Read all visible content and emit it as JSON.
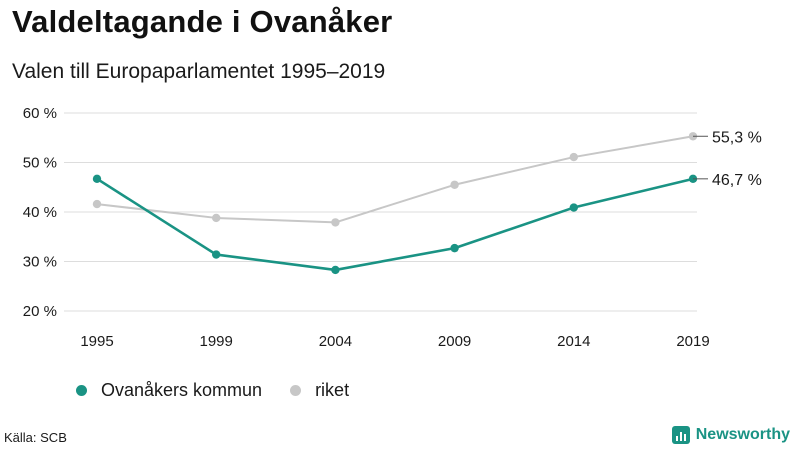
{
  "header": {
    "title": "Valdeltagande i Ovanåker",
    "subtitle": "Valen till Europaparlamentet 1995–2019"
  },
  "colors": {
    "primary": "#1a9384",
    "secondary": "#c7c7c7",
    "grid": "#dddddd",
    "brand": "#1a9384"
  },
  "chart_data": {
    "type": "line",
    "categories": [
      "1995",
      "1999",
      "2004",
      "2009",
      "2014",
      "2019"
    ],
    "ylim": [
      20,
      60
    ],
    "yticks": [
      20,
      30,
      40,
      50,
      60
    ],
    "ytick_labels": [
      "20 %",
      "30 %",
      "40 %",
      "50 %",
      "60 %"
    ],
    "grid": true,
    "legend_position": "bottom-left",
    "series": [
      {
        "name": "Ovanåkers kommun",
        "values": [
          46.7,
          31.4,
          28.3,
          32.7,
          40.9,
          46.7
        ],
        "end_label": "46,7 %"
      },
      {
        "name": "riket",
        "values": [
          41.6,
          38.8,
          37.9,
          45.5,
          51.1,
          55.3
        ],
        "end_label": "55,3 %"
      }
    ]
  },
  "footer": {
    "source": "Källa: SCB",
    "brand_name": "Newsworthy",
    "brand_icon": "newsworthy-logo-icon"
  }
}
